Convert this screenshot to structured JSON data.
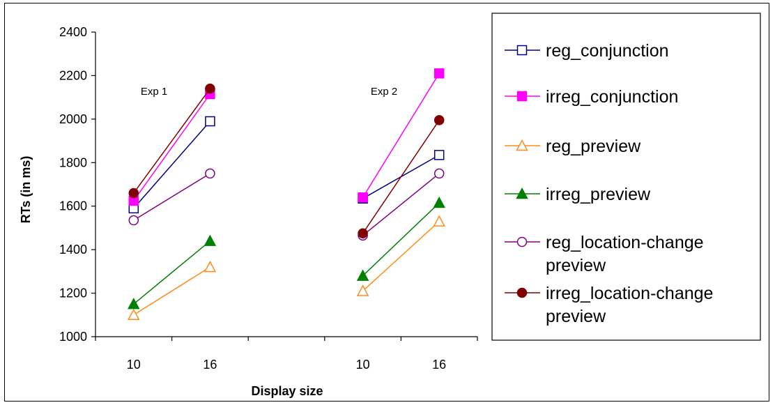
{
  "chart_data": {
    "type": "line",
    "ylabel": "RTs (in ms)",
    "xlabel": "Display size",
    "ylim": [
      1000,
      2400
    ],
    "yticks": [
      1000,
      1200,
      1400,
      1600,
      1800,
      2000,
      2200,
      2400
    ],
    "grid": false,
    "legend_position": "right",
    "groups": [
      {
        "label": "Exp 1",
        "x": [
          "10",
          "16"
        ]
      },
      {
        "label": "Exp 2",
        "x": [
          "10",
          "16"
        ]
      }
    ],
    "series": [
      {
        "name": "reg_conjunction",
        "color": "#000080",
        "marker": "square-open",
        "values": [
          [
            1590,
            1990
          ],
          [
            1635,
            1835
          ]
        ]
      },
      {
        "name": "irreg_conjunction",
        "color": "#ff00ff",
        "marker": "square-filled",
        "values": [
          [
            1625,
            2115
          ],
          [
            1640,
            2210
          ]
        ]
      },
      {
        "name": "reg_preview",
        "color": "#ff8c1a",
        "marker": "triangle-open",
        "values": [
          [
            1100,
            1320
          ],
          [
            1210,
            1530
          ]
        ]
      },
      {
        "name": "irreg_preview",
        "color": "#008000",
        "marker": "triangle-filled",
        "values": [
          [
            1150,
            1440
          ],
          [
            1280,
            1615
          ]
        ]
      },
      {
        "name": "reg_location-change preview",
        "color": "#800080",
        "marker": "circle-open",
        "values": [
          [
            1535,
            1750
          ],
          [
            1465,
            1750
          ]
        ]
      },
      {
        "name": "irreg_location-change preview",
        "color": "#800000",
        "marker": "circle-filled",
        "values": [
          [
            1660,
            2140
          ],
          [
            1475,
            1995
          ]
        ]
      }
    ]
  },
  "legend_lines": [
    [
      "reg_conjunction"
    ],
    [
      "irreg_conjunction"
    ],
    [
      "reg_preview"
    ],
    [
      "irreg_preview"
    ],
    [
      "reg_location-change",
      "preview"
    ],
    [
      "irreg_location-change",
      "preview"
    ]
  ]
}
